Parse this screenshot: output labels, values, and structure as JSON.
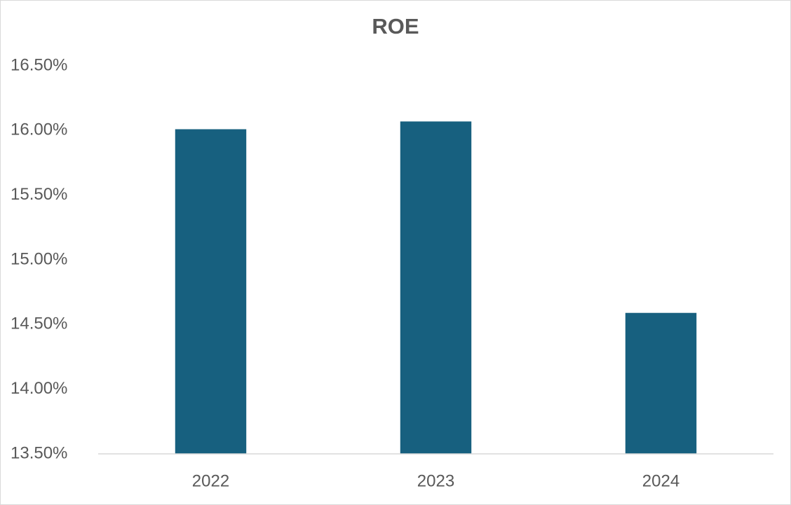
{
  "chart_data": {
    "type": "bar",
    "title": "ROE",
    "categories": [
      "2022",
      "2023",
      "2024"
    ],
    "values": [
      16.01,
      16.07,
      14.59
    ],
    "color": "#17607f",
    "ylim": [
      13.5,
      16.5
    ],
    "yticks": [
      {
        "value": 13.5,
        "label": "13.50%"
      },
      {
        "value": 14,
        "label": "14.00%"
      },
      {
        "value": 14.5,
        "label": "14.50%"
      },
      {
        "value": 15,
        "label": "15.00%"
      },
      {
        "value": 15.5,
        "label": "15.50%"
      },
      {
        "value": 16,
        "label": "16.00%"
      },
      {
        "value": 16.5,
        "label": "16.50%"
      }
    ],
    "grid": false
  }
}
